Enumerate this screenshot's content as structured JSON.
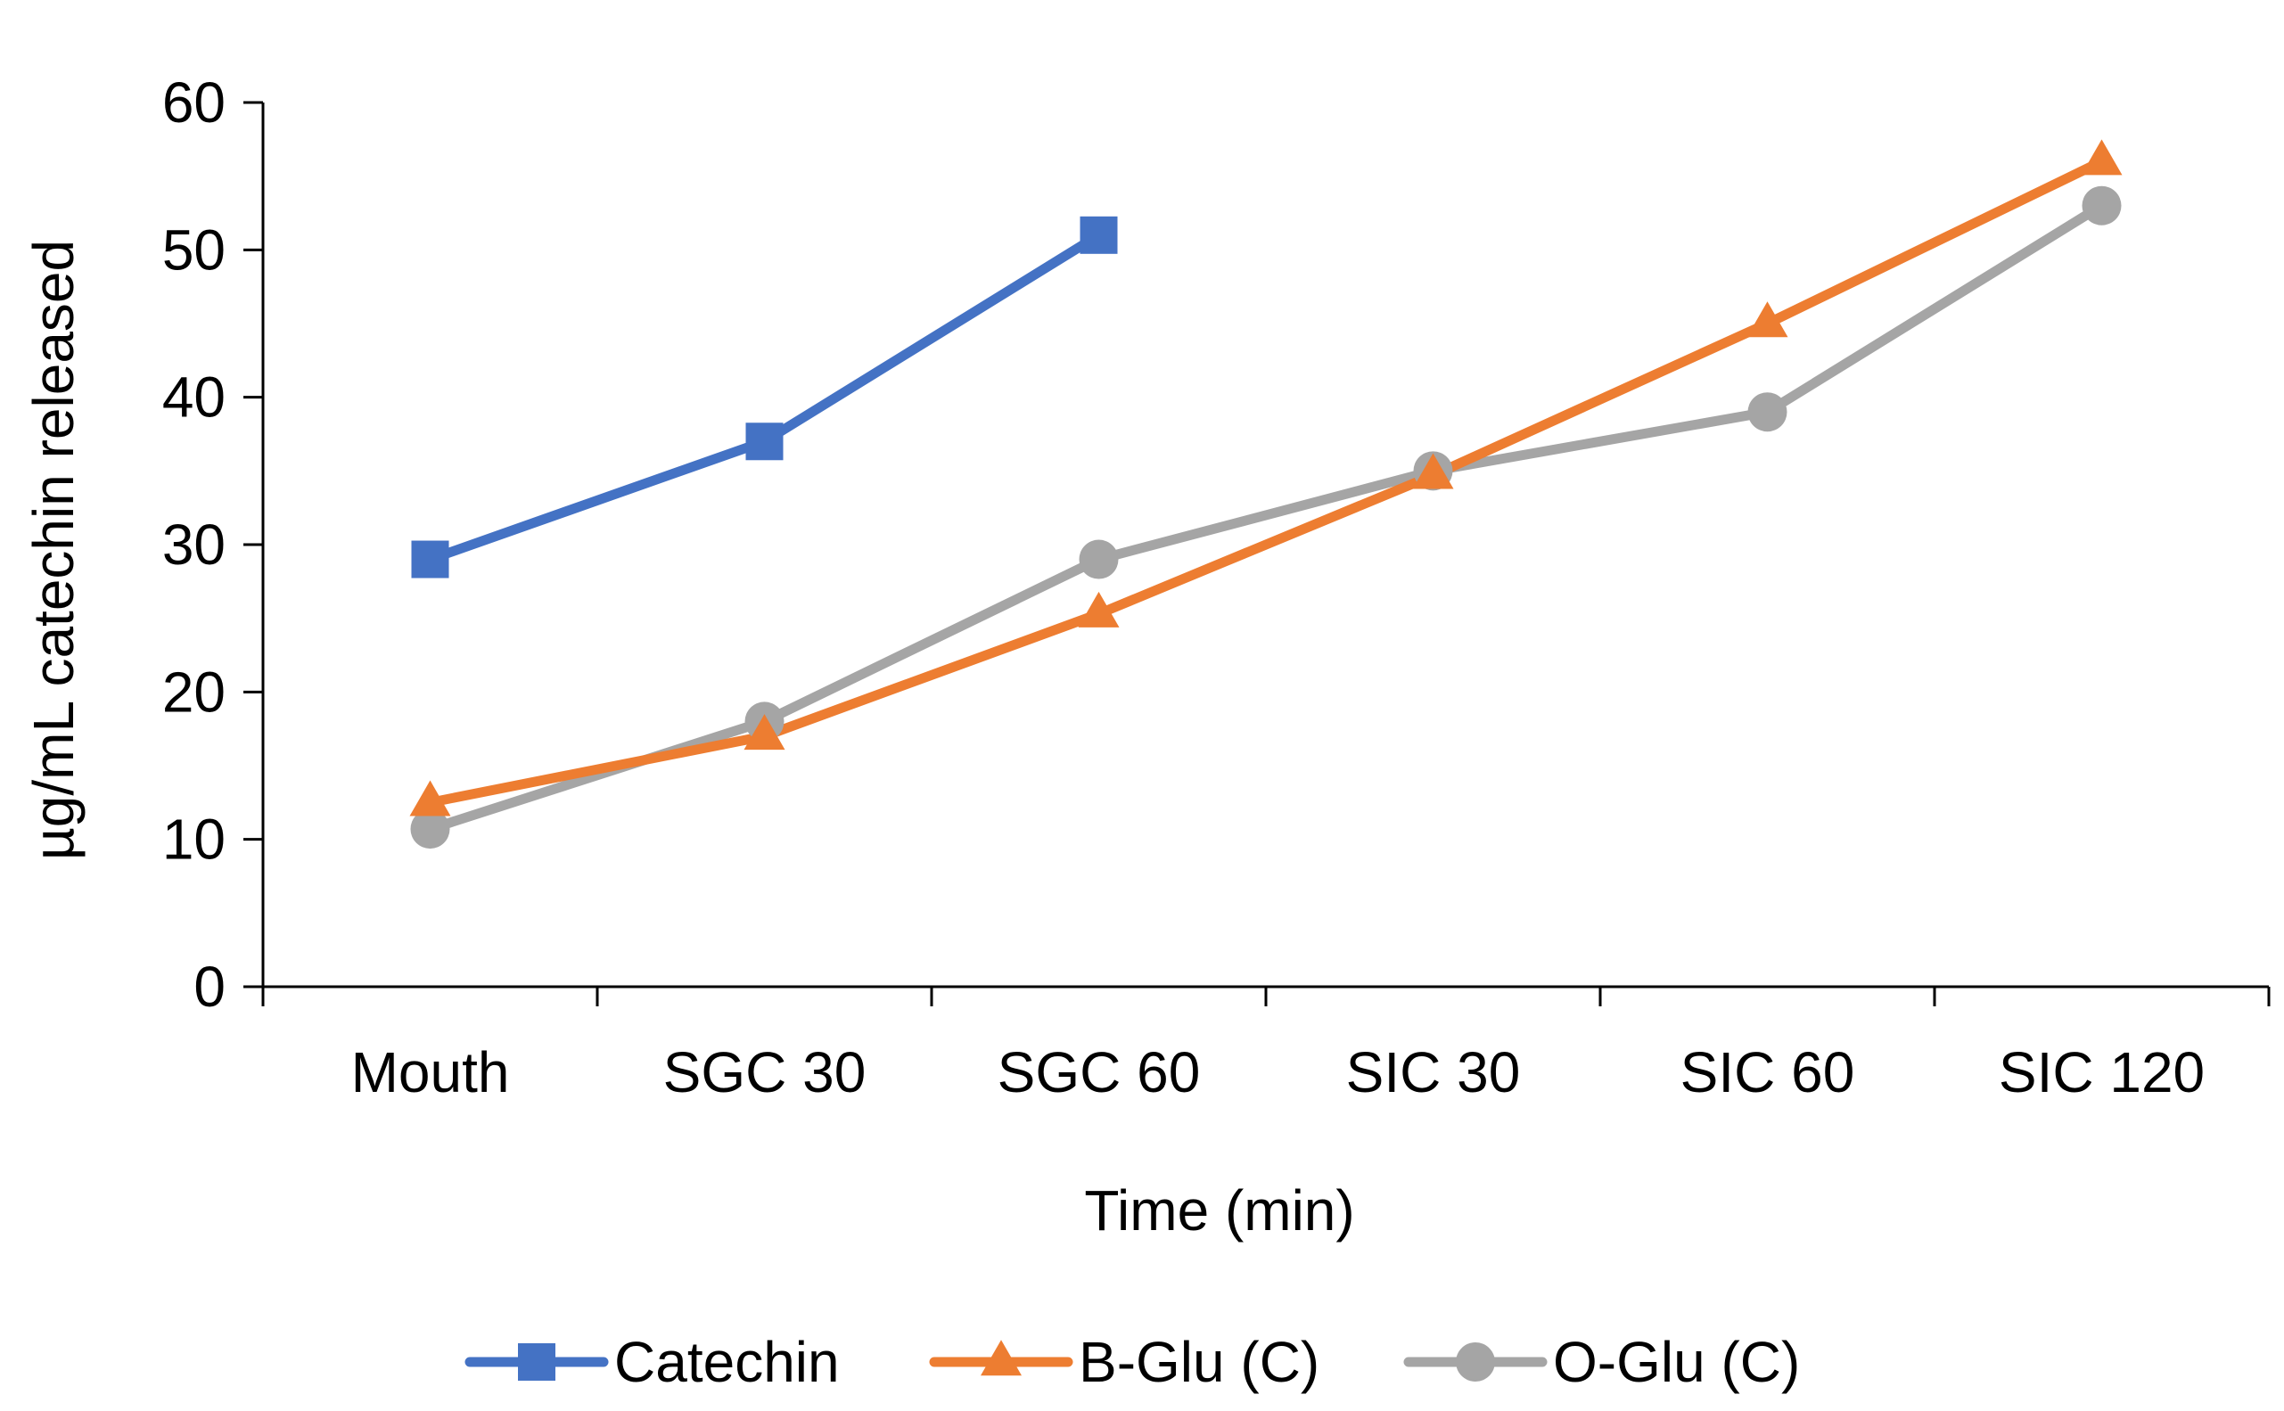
{
  "chart_data": {
    "type": "line",
    "title": "",
    "xlabel": "Time (min)",
    "ylabel": "µg/mL catechin released",
    "categories": [
      "Mouth",
      "SGC 30",
      "SGC 60",
      "SIC 30",
      "SIC 60",
      "SIC 120"
    ],
    "ylim": [
      0,
      60
    ],
    "yticks": [
      0,
      10,
      20,
      30,
      40,
      50,
      60
    ],
    "grid": false,
    "legend_position": "bottom",
    "series": [
      {
        "name": "Catechin",
        "color": "#4472C4",
        "marker": "square",
        "values": [
          29,
          37,
          51,
          null,
          null,
          null
        ]
      },
      {
        "name": "B-Glu (C)",
        "color": "#ED7D31",
        "marker": "triangle",
        "values": [
          12.5,
          17,
          25.3,
          34.7,
          45,
          56
        ]
      },
      {
        "name": "O-Glu (C)",
        "color": "#A5A5A5",
        "marker": "circle",
        "values": [
          10.7,
          18,
          29,
          35,
          39,
          53
        ]
      }
    ]
  }
}
